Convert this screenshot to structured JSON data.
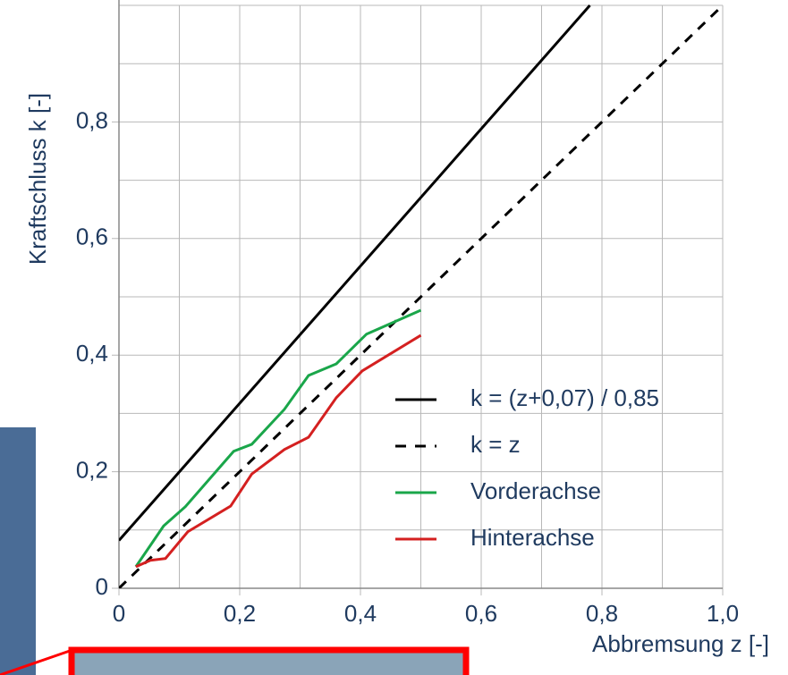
{
  "chart_data": {
    "type": "line",
    "xlabel": "Abbremsung z [-]",
    "ylabel": "Kraftschluss k [-]",
    "xlim": [
      0,
      1
    ],
    "ylim": [
      0,
      1
    ],
    "xticks": [
      0,
      {
        "value": 0.2,
        "label": "0,2"
      },
      {
        "value": 0.4,
        "label": "0,4"
      },
      {
        "value": 0.6,
        "label": "0,6"
      },
      {
        "value": 0.8,
        "label": "0,8"
      },
      {
        "value": 1.0,
        "label": "1,0"
      }
    ],
    "yticks": [
      0,
      {
        "value": 0.2,
        "label": "0,2"
      },
      {
        "value": 0.4,
        "label": "0,4"
      },
      {
        "value": 0.6,
        "label": "0,6"
      },
      {
        "value": 0.8,
        "label": "0,8"
      }
    ],
    "minor_xticks": [
      0.1,
      0.3,
      0.5,
      0.7,
      0.9
    ],
    "minor_yticks": [
      0.1,
      0.3,
      0.5,
      0.7,
      0.9,
      1.0
    ],
    "grid": true,
    "legend": "lower right",
    "series": [
      {
        "name": "k = (z+0,07) / 0,85",
        "color": "#000000",
        "dash": false,
        "x": [
          0,
          0.78
        ],
        "values": [
          0.082,
          1.0
        ]
      },
      {
        "name": "k = z",
        "color": "#000000",
        "dash": true,
        "x": [
          0,
          1.0
        ],
        "values": [
          0,
          1.0
        ]
      },
      {
        "name": "Vorderachse",
        "color": "#1aa64a",
        "dash": false,
        "x": [
          0.028,
          0.074,
          0.11,
          0.19,
          0.22,
          0.274,
          0.314,
          0.36,
          0.41,
          0.5
        ],
        "values": [
          0.037,
          0.107,
          0.14,
          0.235,
          0.247,
          0.307,
          0.365,
          0.385,
          0.436,
          0.477
        ]
      },
      {
        "name": "Hinterachse",
        "color": "#d42020",
        "dash": false,
        "x": [
          0.028,
          0.052,
          0.077,
          0.114,
          0.185,
          0.22,
          0.274,
          0.314,
          0.36,
          0.403,
          0.5
        ],
        "values": [
          0.037,
          0.048,
          0.051,
          0.097,
          0.141,
          0.196,
          0.238,
          0.259,
          0.327,
          0.373,
          0.434
        ]
      }
    ]
  }
}
